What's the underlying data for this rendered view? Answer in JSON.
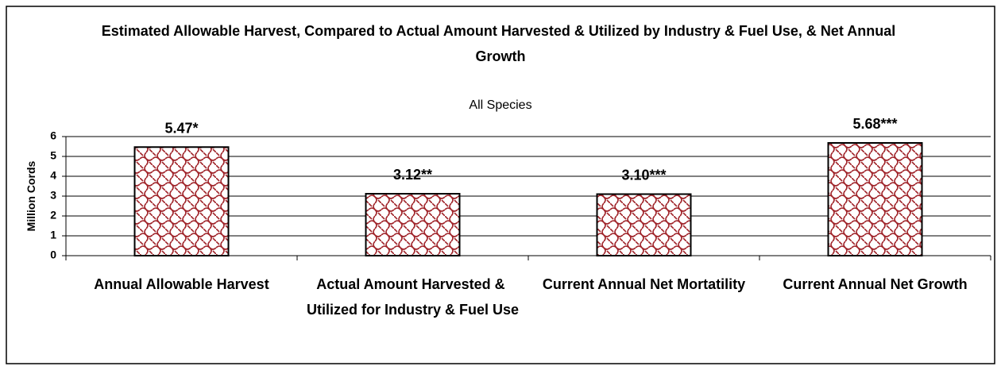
{
  "chart_data": {
    "type": "bar",
    "title": "Estimated Allowable Harvest, Compared to Actual Amount Harvested & Utilized by Industry & Fuel Use, & Net Annual Growth",
    "subtitle": "All Species",
    "y_label": "Million Cords",
    "categories": [
      "Annual Allowable Harvest",
      "Actual Amount Harvested & Utilized for Industry & Fuel Use",
      "Current Annual Net Mortatility",
      "Current Annual Net Growth"
    ],
    "values": [
      5.47,
      3.12,
      3.1,
      5.68
    ],
    "value_labels": [
      "5.47*",
      "3.12**",
      "3.10***",
      "5.68***"
    ],
    "color": "#a0242a",
    "ylim": [
      0,
      6
    ],
    "yticks": [
      0,
      1,
      2,
      3,
      4,
      5,
      6
    ],
    "grid": true
  }
}
